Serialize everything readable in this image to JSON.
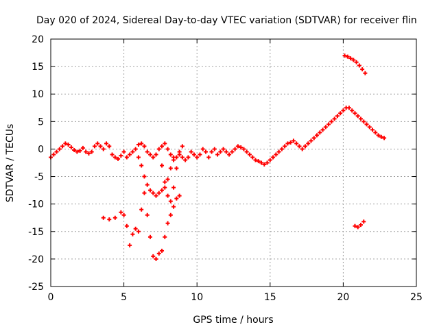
{
  "chart_data": {
    "type": "scatter",
    "title": "Day 020 of 2024, Sidereal Day-to-day VTEC variation (SDTVAR) for receiver flin",
    "xlabel": "GPS time / hours",
    "ylabel": "SDTVAR / TECUs",
    "xlim": [
      0,
      25
    ],
    "ylim": [
      -25,
      20
    ],
    "xticks": [
      "0",
      "5",
      "10",
      "15",
      "20",
      "25"
    ],
    "yticks": [
      "-25",
      "-20",
      "-15",
      "-10",
      "-5",
      "0",
      "5",
      "10",
      "15",
      "20"
    ],
    "grid": true,
    "marker": "plus",
    "color": "#ff0000",
    "series": [
      {
        "x": [
          0.0,
          0.2,
          0.4,
          0.6,
          0.8,
          1.0,
          1.2,
          1.4,
          1.6,
          1.8,
          2.0,
          2.2,
          2.4,
          2.6,
          2.8,
          3.0,
          3.2,
          3.4,
          3.6,
          3.8,
          4.0,
          4.2,
          4.4,
          4.6,
          4.8,
          5.0,
          5.2,
          5.4,
          5.6,
          5.8,
          6.0,
          6.2,
          6.4,
          6.6,
          6.8,
          7.0,
          7.2,
          7.4,
          7.6,
          7.8,
          8.0,
          8.2,
          8.4,
          8.6,
          8.8,
          9.0,
          9.2,
          9.4,
          9.6,
          9.8,
          10.0,
          10.2,
          10.4,
          10.6,
          10.8,
          11.0,
          11.2,
          11.4,
          11.6,
          11.8,
          12.0,
          12.2,
          12.4,
          12.6,
          12.8,
          13.0,
          13.2,
          13.4,
          13.6,
          13.8,
          14.0,
          14.2,
          14.4,
          14.6,
          14.8,
          15.0,
          15.2,
          15.4,
          15.6,
          15.8,
          16.0,
          16.2,
          16.4,
          16.6,
          16.8,
          17.0,
          17.2,
          17.4,
          17.6,
          17.8,
          18.0,
          18.2,
          18.4,
          18.6,
          18.8,
          19.0,
          19.2,
          19.4,
          19.6,
          19.8,
          20.0,
          20.2,
          20.4,
          20.6,
          20.8,
          21.0,
          21.2,
          21.4,
          21.6,
          21.8,
          22.0,
          22.2,
          22.4,
          22.6,
          22.8
        ],
        "y": [
          -1.5,
          -1.0,
          -0.5,
          0.0,
          0.5,
          1.0,
          0.8,
          0.3,
          -0.2,
          -0.5,
          -0.3,
          0.2,
          -0.5,
          -0.8,
          -0.5,
          0.5,
          1.0,
          0.5,
          0.0,
          1.0,
          0.5,
          -1.0,
          -1.5,
          -1.8,
          -1.2,
          -0.5,
          -1.5,
          -1.0,
          -0.5,
          0.0,
          0.8,
          1.0,
          0.5,
          -0.5,
          -1.0,
          -1.5,
          -1.0,
          0.0,
          0.5,
          1.0,
          0.0,
          -1.0,
          -2.0,
          -1.5,
          -1.0,
          -1.5,
          -2.0,
          -1.5,
          -0.5,
          -1.0,
          -1.5,
          -1.0,
          0.0,
          -0.5,
          -1.5,
          -0.5,
          0.0,
          -1.0,
          -0.5,
          0.0,
          -0.5,
          -1.0,
          -0.5,
          0.0,
          0.5,
          0.3,
          0.0,
          -0.5,
          -1.0,
          -1.5,
          -2.0,
          -2.2,
          -2.5,
          -2.8,
          -2.5,
          -2.0,
          -1.5,
          -1.0,
          -0.5,
          0.0,
          0.5,
          1.0,
          1.2,
          1.5,
          1.0,
          0.5,
          0.0,
          0.5,
          1.0,
          1.5,
          2.0,
          2.5,
          3.0,
          3.5,
          4.0,
          4.5,
          5.0,
          5.5,
          6.0,
          6.5,
          7.0,
          7.5,
          7.5,
          7.0,
          6.5,
          6.0,
          5.5,
          5.0,
          4.5,
          4.0,
          3.5,
          3.0,
          2.5,
          2.2,
          2.0
        ]
      },
      {
        "x": [
          3.6,
          4.0,
          4.4,
          4.8,
          5.0,
          5.2,
          5.4,
          5.6,
          5.8,
          6.0,
          6.2,
          6.4,
          6.6,
          6.8,
          7.0,
          7.2,
          7.4,
          7.6,
          7.8,
          8.0,
          8.2,
          8.4,
          8.6,
          8.8
        ],
        "y": [
          -12.5,
          -12.8,
          -12.5,
          -11.5,
          -12.0,
          -14.0,
          -17.5,
          -15.5,
          -14.5,
          -15.0,
          -11.0,
          -8.0,
          -12.0,
          -16.0,
          -19.5,
          -20.0,
          -19.0,
          -18.5,
          -16.0,
          -13.5,
          -12.0,
          -10.5,
          -9.0,
          -8.5
        ]
      },
      {
        "x": [
          6.0,
          6.2,
          6.4,
          6.6,
          6.8,
          7.0,
          7.2,
          7.4,
          7.6,
          7.8,
          8.0,
          8.2,
          8.4
        ],
        "y": [
          -1.5,
          -3.0,
          -5.0,
          -6.5,
          -7.5,
          -8.0,
          -8.5,
          -8.0,
          -7.5,
          -7.0,
          -5.5,
          -3.5,
          -1.5
        ]
      },
      {
        "x": [
          7.6,
          7.8,
          8.0,
          8.2,
          8.4,
          8.6,
          8.8,
          9.0
        ],
        "y": [
          -3.0,
          -6.0,
          -8.5,
          -9.5,
          -7.0,
          -3.5,
          -0.5,
          0.5
        ]
      },
      {
        "x": [
          20.1,
          20.3,
          20.5,
          20.7,
          20.9,
          21.1,
          21.3,
          21.5
        ],
        "y": [
          17.0,
          16.8,
          16.5,
          16.2,
          15.8,
          15.2,
          14.5,
          13.8
        ]
      },
      {
        "x": [
          20.8,
          21.0,
          21.2,
          21.4
        ],
        "y": [
          -14.0,
          -14.2,
          -13.8,
          -13.2
        ]
      }
    ]
  }
}
